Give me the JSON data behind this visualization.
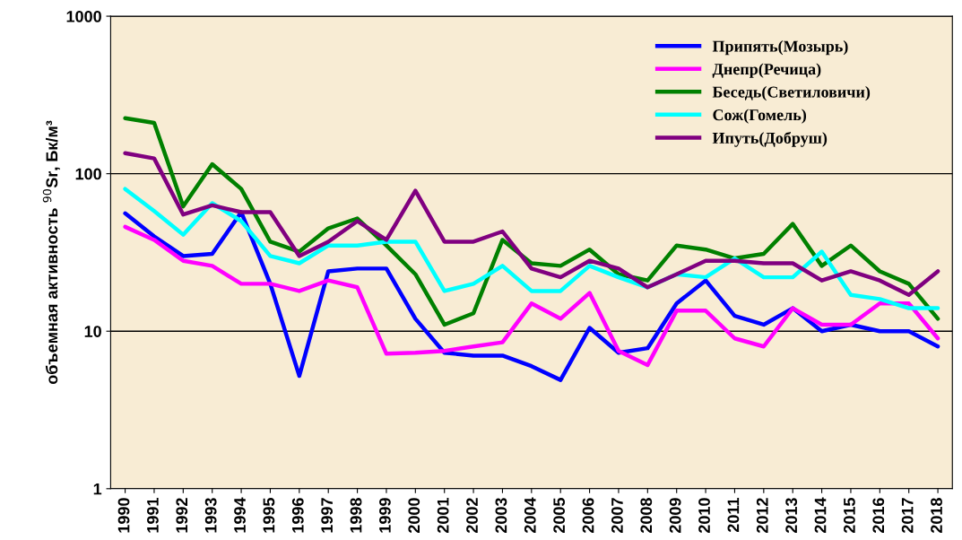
{
  "chart_data": {
    "type": "line",
    "ylabel": "объемная активность $^{90}$Sr, Бк/м³",
    "categories": [
      "1990",
      "1991",
      "1992",
      "1993",
      "1994",
      "1995",
      "1996",
      "1997",
      "1998",
      "1999",
      "2000",
      "2001",
      "2002",
      "2003",
      "2004",
      "2005",
      "2006",
      "2007",
      "2008",
      "2009",
      "2010",
      "2011",
      "2012",
      "2013",
      "2014",
      "2015",
      "2016",
      "2017",
      "2018"
    ],
    "log": true,
    "ylim": [
      1,
      1000
    ],
    "yticks": [
      1,
      10,
      100,
      1000
    ],
    "grid": "y",
    "legend": "top right",
    "marker": "none",
    "line_style": "solid",
    "series": [
      {
        "name": "Припять(Мозырь)",
        "color": "#0000ff",
        "values": [
          56,
          40,
          30,
          31,
          57,
          20,
          5.2,
          24,
          25,
          25,
          12,
          7.3,
          7,
          7,
          6,
          4.9,
          10.5,
          7.3,
          7.8,
          15,
          21,
          12.5,
          11,
          14,
          10,
          11,
          10,
          10,
          8
        ]
      },
      {
        "name": "Днепр(Речица)",
        "color": "#ff00ff",
        "values": [
          46,
          38,
          28,
          26,
          20,
          20,
          18,
          21,
          19,
          7.2,
          7.3,
          7.5,
          8,
          8.5,
          15,
          12,
          17.5,
          7.5,
          6.1,
          13.5,
          13.5,
          9,
          8,
          14,
          11,
          11,
          15,
          15,
          9
        ]
      },
      {
        "name": "Беседь(Светиловичи)",
        "color": "#008000",
        "values": [
          225,
          210,
          62,
          115,
          80,
          37,
          32,
          45,
          52,
          35,
          23,
          11,
          13,
          38,
          27,
          26,
          33,
          23,
          21,
          35,
          33,
          29,
          31,
          48,
          26,
          35,
          24,
          20,
          12
        ]
      },
      {
        "name": "Сож(Гомель)",
        "color": "#00ffff",
        "values": [
          80,
          58,
          41,
          65,
          50,
          30,
          27,
          35,
          35,
          37,
          37,
          18,
          20,
          26,
          18,
          18,
          26,
          22,
          19,
          23,
          22,
          29,
          22,
          22,
          32,
          17,
          16,
          14,
          14
        ]
      },
      {
        "name": "Ипуть(Добруш)",
        "color": "#800080",
        "values": [
          135,
          125,
          55,
          63,
          57,
          57,
          30,
          37,
          50,
          38,
          78,
          37,
          37,
          43,
          25,
          22,
          28,
          25,
          19,
          23,
          28,
          28,
          27,
          27,
          21,
          24,
          21,
          17,
          24
        ]
      }
    ]
  }
}
